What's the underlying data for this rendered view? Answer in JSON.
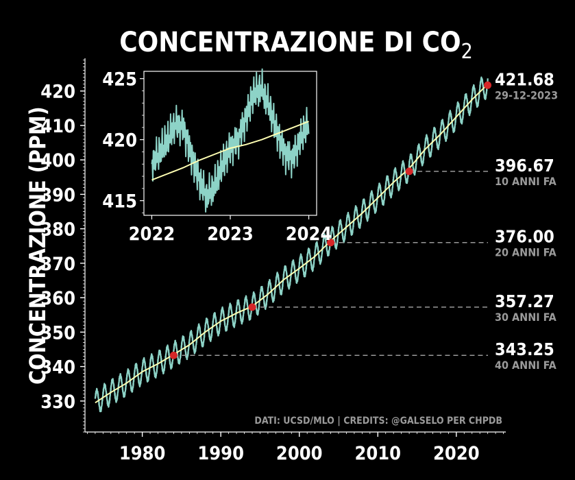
{
  "title": "CONCENTRAZIONE DI CO",
  "title_subscript": "2",
  "credits": "DATI: UCSD/MLO | CREDITS: @GALSELO PER CHPDB",
  "colors": {
    "background": "#000000",
    "raw": "#8dd3c7",
    "trend": "#ffffb3",
    "marker": "#d62728",
    "dashed": "#9a9a9a"
  },
  "chart_data": [
    {
      "type": "line",
      "ylabel": "CONCENTRAZIONE (PPM)",
      "xlabel": "",
      "xlim": [
        1972.7,
        2026.3
      ],
      "ylim": [
        321,
        429.5
      ],
      "xticks": [
        1980,
        1990,
        2000,
        2010,
        2020
      ],
      "yticks": [
        330,
        340,
        350,
        360,
        370,
        380,
        390,
        400,
        410,
        420
      ],
      "grid": false,
      "series": [
        {
          "kind": "daily",
          "x": [
            1974.0,
            1976.0,
            1978.0,
            1980.0,
            1982.0,
            1984.0,
            1986.0,
            1988.0,
            1990.0,
            1992.0,
            1994.0,
            1996.0,
            1998.0,
            2000.0,
            2002.0,
            2004.0,
            2006.0,
            2008.0,
            2010.0,
            2012.0,
            2014.0,
            2016.0,
            2018.0,
            2020.0,
            2022.0,
            2024.0
          ],
          "y": [
            329.5,
            332.5,
            335.2,
            338.5,
            340.8,
            343.5,
            346.3,
            350.0,
            353.2,
            355.5,
            357.5,
            361.0,
            365.2,
            368.5,
            372.0,
            376.5,
            380.5,
            384.5,
            389.0,
            393.5,
            397.5,
            403.0,
            407.5,
            412.5,
            417.5,
            422.0
          ],
          "seasonal_amplitude": 3.3
        },
        {
          "kind": "trend",
          "x": [
            1974.0,
            1976.0,
            1978.0,
            1980.0,
            1982.0,
            1984.0,
            1986.0,
            1988.0,
            1990.0,
            1992.0,
            1994.0,
            1996.0,
            1998.0,
            2000.0,
            2002.0,
            2004.0,
            2006.0,
            2008.0,
            2010.0,
            2012.0,
            2014.0,
            2016.0,
            2018.0,
            2020.0,
            2022.0,
            2024.0
          ],
          "y": [
            329.5,
            332.5,
            335.2,
            338.5,
            340.8,
            343.5,
            346.3,
            350.0,
            353.2,
            355.5,
            357.5,
            361.0,
            365.2,
            368.5,
            372.0,
            376.5,
            380.5,
            384.5,
            389.0,
            393.5,
            397.5,
            403.0,
            407.5,
            412.5,
            417.5,
            422.0
          ]
        }
      ],
      "annotations": [
        {
          "x": 1984.0,
          "y": 343.25,
          "value": "343.25",
          "label": "40 ANNI FA"
        },
        {
          "x": 1994.0,
          "y": 357.27,
          "value": "357.27",
          "label": "30 ANNI FA"
        },
        {
          "x": 2004.0,
          "y": 376.0,
          "value": "376.00",
          "label": "20 ANNI FA"
        },
        {
          "x": 2014.0,
          "y": 396.67,
          "value": "396.67",
          "label": "10 ANNI FA"
        },
        {
          "x": 2023.99,
          "y": 421.68,
          "value": "421.68",
          "label": "29-12-2023"
        }
      ]
    },
    {
      "type": "line",
      "inset": true,
      "xlim": [
        2021.9,
        2024.1
      ],
      "ylim": [
        413.8,
        425.6
      ],
      "xticks": [
        2022,
        2023,
        2024
      ],
      "yticks": [
        415,
        420,
        425
      ],
      "series": [
        {
          "kind": "daily",
          "x": [
            2022.0,
            2022.1,
            2022.2,
            2022.3,
            2022.4,
            2022.5,
            2022.6,
            2022.7,
            2022.8,
            2022.9,
            2023.0,
            2023.1,
            2023.2,
            2023.3,
            2023.4,
            2023.5,
            2023.6,
            2023.7,
            2023.8,
            2023.9,
            2024.0
          ],
          "y": [
            418.0,
            419.0,
            420.0,
            421.3,
            421.0,
            418.8,
            416.8,
            415.3,
            416.2,
            418.0,
            419.3,
            420.0,
            421.8,
            423.8,
            424.2,
            422.6,
            420.5,
            418.8,
            418.5,
            420.2,
            421.5
          ]
        },
        {
          "kind": "trend",
          "x": [
            2022.0,
            2022.2,
            2022.4,
            2022.6,
            2022.8,
            2023.0,
            2023.2,
            2023.4,
            2023.6,
            2023.8,
            2024.0
          ],
          "y": [
            416.7,
            417.2,
            417.7,
            418.3,
            418.8,
            419.3,
            419.6,
            420.0,
            420.5,
            421.0,
            421.5
          ]
        }
      ]
    }
  ]
}
